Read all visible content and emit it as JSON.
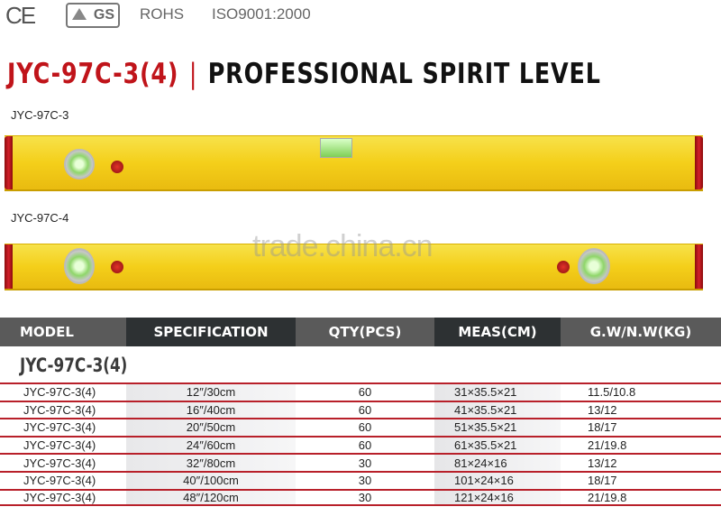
{
  "certifications": {
    "ce": "CE",
    "gs": "GS",
    "rohs": "ROHS",
    "iso": "ISO9001:2000"
  },
  "title": {
    "model": "JYC-97C-3(4)",
    "separator": "|",
    "name": "PROFESSIONAL SPIRIT LEVEL"
  },
  "products": [
    {
      "label": "JYC-97C-3"
    },
    {
      "label": "JYC-97C-4"
    }
  ],
  "watermark": "trade.china.cn",
  "colors": {
    "accent_red": "#c0141a",
    "level_yellow": "#f4cf1a",
    "header_dark": "#2d3133",
    "header_grey": "#5a5a5a"
  },
  "table": {
    "headers": [
      "MODEL",
      "SPECIFICATION",
      "QTY(PCS)",
      "MEAS(CM)",
      "G.W/N.W(KG)"
    ],
    "group_title": "JYC-97C-3(4)",
    "rows": [
      [
        "JYC-97C-3(4)",
        "12″/30cm",
        "60",
        "31×35.5×21",
        "11.5/10.8"
      ],
      [
        "JYC-97C-3(4)",
        "16″/40cm",
        "60",
        "41×35.5×21",
        "13/12"
      ],
      [
        "JYC-97C-3(4)",
        "20″/50cm",
        "60",
        "51×35.5×21",
        "18/17"
      ],
      [
        "JYC-97C-3(4)",
        "24″/60cm",
        "60",
        "61×35.5×21",
        "21/19.8"
      ],
      [
        "JYC-97C-3(4)",
        "32″/80cm",
        "30",
        "81×24×16",
        "13/12"
      ],
      [
        "JYC-97C-3(4)",
        "40″/100cm",
        "30",
        "101×24×16",
        "18/17"
      ],
      [
        "JYC-97C-3(4)",
        "48″/120cm",
        "30",
        "121×24×16",
        "21/19.8"
      ]
    ]
  }
}
